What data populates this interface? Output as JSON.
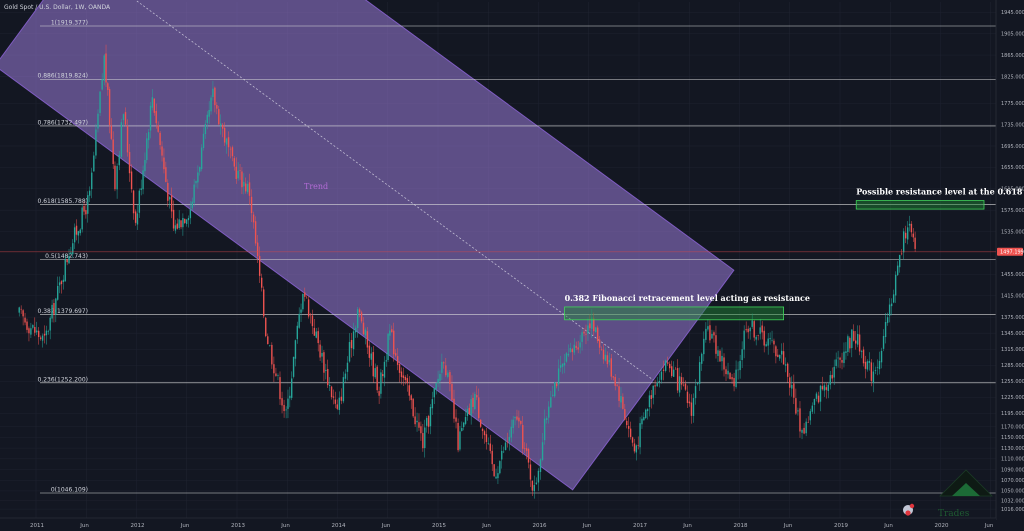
{
  "header": {
    "title": "Gold Spot / U.S. Dollar, 1W, OANDA"
  },
  "colors": {
    "background": "#131722",
    "grid": "#1f2330",
    "up": "#26a69a",
    "down": "#ef5350",
    "fib_line": "#d9d9d9",
    "channel_fill": "#9b7bd8",
    "channel_border": "#7f5cc2",
    "zone_fill": "#1e8c36",
    "zone_border": "#3fd45a",
    "last_price_bg": "#ef5350",
    "last_price_line": "#d64545"
  },
  "chart_data": {
    "type": "candlestick",
    "title": "Gold Spot / U.S. Dollar, 1W, OANDA",
    "ylim": [
      1016,
      1985
    ],
    "y_ticks": [
      "1985.000",
      "1945.000",
      "1905.000",
      "1865.000",
      "1825.000",
      "1775.000",
      "1735.000",
      "1695.000",
      "1655.000",
      "1615.000",
      "1575.000",
      "1535.000",
      "1497.199",
      "1455.000",
      "1415.000",
      "1375.000",
      "1345.000",
      "1315.000",
      "1285.000",
      "1255.000",
      "1225.000",
      "1195.000",
      "1170.000",
      "1150.000",
      "1130.000",
      "1110.000",
      "1090.000",
      "1070.000",
      "1050.000",
      "1032.000",
      "1016.000"
    ],
    "x_ticks": [
      "2011",
      "Jun",
      "2012",
      "Jun",
      "2013",
      "Jun",
      "2014",
      "Jun",
      "2015",
      "Jun",
      "2016",
      "Jun",
      "2017",
      "Jun",
      "2018",
      "Jun",
      "2019",
      "Jun",
      "2020",
      "Jun"
    ],
    "last_price": {
      "label": "1497.199",
      "value": 1497.199
    },
    "fib_levels": [
      {
        "ratio": "1",
        "value": 1919.377,
        "label": "1(1919.377)"
      },
      {
        "ratio": "0.886",
        "value": 1819.824,
        "label": "0.886(1819.824)"
      },
      {
        "ratio": "0.786",
        "value": 1732.497,
        "label": "0.786(1732.497)"
      },
      {
        "ratio": "0.618",
        "value": 1585.788,
        "label": "0.618(1585.788)"
      },
      {
        "ratio": "0.5",
        "value": 1482.743,
        "label": "0.5(1482.743)"
      },
      {
        "ratio": "0.382",
        "value": 1379.697,
        "label": "0.382(1379.697)"
      },
      {
        "ratio": "0.236",
        "value": 1252.2,
        "label": "0.236(1252.200)"
      },
      {
        "ratio": "0",
        "value": 1046.109,
        "label": "0(1046.109)"
      }
    ],
    "anchors": [
      [
        "2010-11-01",
        1380
      ],
      [
        "2011-02-01",
        1330
      ],
      [
        "2011-05-01",
        1500
      ],
      [
        "2011-07-15",
        1600
      ],
      [
        "2011-09-06",
        1860
      ],
      [
        "2011-10-15",
        1630
      ],
      [
        "2011-11-15",
        1760
      ],
      [
        "2011-12-29",
        1550
      ],
      [
        "2012-02-28",
        1790
      ],
      [
        "2012-05-15",
        1540
      ],
      [
        "2012-07-15",
        1580
      ],
      [
        "2012-10-05",
        1790
      ],
      [
        "2012-12-15",
        1660
      ],
      [
        "2013-02-15",
        1610
      ],
      [
        "2013-04-15",
        1350
      ],
      [
        "2013-06-28",
        1190
      ],
      [
        "2013-08-28",
        1430
      ],
      [
        "2013-12-31",
        1195
      ],
      [
        "2014-03-15",
        1390
      ],
      [
        "2014-06-01",
        1240
      ],
      [
        "2014-07-10",
        1345
      ],
      [
        "2014-11-07",
        1140
      ],
      [
        "2015-01-22",
        1305
      ],
      [
        "2015-03-15",
        1140
      ],
      [
        "2015-05-15",
        1230
      ],
      [
        "2015-07-24",
        1080
      ],
      [
        "2015-10-15",
        1190
      ],
      [
        "2015-12-17",
        1050
      ],
      [
        "2016-02-15",
        1240
      ],
      [
        "2016-07-06",
        1370
      ],
      [
        "2016-10-06",
        1260
      ],
      [
        "2016-12-15",
        1125
      ],
      [
        "2017-02-28",
        1260
      ],
      [
        "2017-04-15",
        1290
      ],
      [
        "2017-07-10",
        1205
      ],
      [
        "2017-09-08",
        1355
      ],
      [
        "2017-12-12",
        1240
      ],
      [
        "2018-01-25",
        1365
      ],
      [
        "2018-04-15",
        1330
      ],
      [
        "2018-06-10",
        1300
      ],
      [
        "2018-08-16",
        1160
      ],
      [
        "2018-10-15",
        1230
      ],
      [
        "2019-02-20",
        1345
      ],
      [
        "2019-04-25",
        1270
      ],
      [
        "2019-06-01",
        1310
      ],
      [
        "2019-07-15",
        1430
      ],
      [
        "2019-09-04",
        1557
      ],
      [
        "2019-10-01",
        1495
      ]
    ],
    "trend_channel": {
      "label": "Trend",
      "upper": [
        [
          "2010-12-15",
          1795
        ],
        [
          "2016-02-15",
          1082
        ]
      ],
      "lower": [
        [
          "2013-03-20",
          2115
        ],
        [
          "2016-02-15",
          1082
        ]
      ]
    },
    "annotations": [
      {
        "text": "Possible resistance level at the 0.618 fib",
        "zone": {
          "x0": "2019-03-01",
          "x1": "2020-06-10",
          "y0": 1577,
          "y1": 1593
        }
      },
      {
        "text": "0.382 Fibonacci retracement level acting as resistance",
        "zone": {
          "x0": "2016-04-05",
          "x1": "2018-06-10",
          "y0": 1370,
          "y1": 1394
        }
      }
    ],
    "watermark": "Trades"
  }
}
